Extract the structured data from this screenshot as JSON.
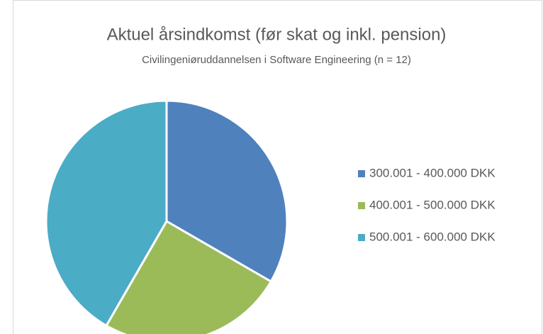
{
  "chart_data": {
    "type": "pie",
    "title": "Aktuel årsindkomst (før skat og inkl. pension)",
    "subtitle": "Civilingeniøruddannelsen i Software Engineering (n = 12)",
    "categories": [
      "300.001 - 400.000 DKK",
      "400.001 - 500.000 DKK",
      "500.001 - 600.000 DKK"
    ],
    "values": [
      4,
      3,
      5
    ],
    "colors": [
      "#4f81bd",
      "#9bbb59",
      "#4bacc6"
    ],
    "legend": "right"
  }
}
